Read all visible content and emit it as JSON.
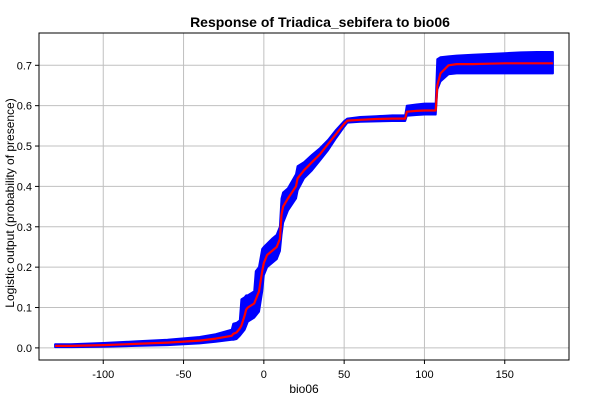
{
  "chart_data": {
    "type": "line",
    "title": "Response of Triadica_sebifera to bio06",
    "xlabel": "bio06",
    "ylabel": "Logistic output (probability of presence)",
    "xlim": [
      -140,
      190
    ],
    "ylim": [
      -0.03,
      0.78
    ],
    "xticks": [
      -100,
      -50,
      0,
      50,
      100,
      150
    ],
    "yticks": [
      0.0,
      0.1,
      0.2,
      0.3,
      0.4,
      0.5,
      0.6,
      0.7
    ],
    "xtick_labels": [
      "-100",
      "-50",
      "0",
      "50",
      "100",
      "150"
    ],
    "ytick_labels": [
      "0.0",
      "0.1",
      "0.2",
      "0.3",
      "0.4",
      "0.5",
      "0.6",
      "0.7"
    ],
    "grid": true,
    "colors": {
      "mean_line": "#ff0000",
      "band": "#0000ff"
    },
    "series": [
      {
        "role": "mean",
        "x": [
          -130,
          -120,
          -100,
          -80,
          -60,
          -40,
          -30,
          -20,
          -19,
          -17,
          -15,
          -14,
          -12,
          -11,
          -10,
          -8,
          -6,
          -5,
          -3,
          -1,
          0,
          2,
          5,
          8,
          10,
          11,
          12,
          15,
          20,
          21,
          25,
          30,
          35,
          40,
          45,
          50,
          52,
          60,
          70,
          80,
          88,
          89,
          95,
          100,
          105,
          107,
          108,
          110,
          115,
          120,
          130,
          140,
          150,
          160,
          170,
          180
        ],
        "y": [
          0.005,
          0.005,
          0.007,
          0.01,
          0.013,
          0.018,
          0.023,
          0.03,
          0.035,
          0.038,
          0.048,
          0.055,
          0.08,
          0.095,
          0.1,
          0.105,
          0.11,
          0.12,
          0.14,
          0.19,
          0.21,
          0.23,
          0.24,
          0.25,
          0.27,
          0.33,
          0.35,
          0.37,
          0.4,
          0.42,
          0.44,
          0.46,
          0.48,
          0.505,
          0.53,
          0.555,
          0.563,
          0.565,
          0.567,
          0.568,
          0.568,
          0.585,
          0.587,
          0.588,
          0.588,
          0.588,
          0.65,
          0.68,
          0.7,
          0.703,
          0.703,
          0.704,
          0.705,
          0.705,
          0.705,
          0.705
        ]
      },
      {
        "role": "upper",
        "x": [
          -130,
          -120,
          -100,
          -80,
          -60,
          -40,
          -30,
          -20,
          -19,
          -17,
          -15,
          -14,
          -12,
          -11,
          -10,
          -8,
          -6,
          -5,
          -3,
          -1,
          0,
          2,
          5,
          8,
          10,
          11,
          12,
          15,
          20,
          21,
          25,
          30,
          35,
          40,
          45,
          50,
          52,
          60,
          70,
          80,
          88,
          89,
          95,
          100,
          105,
          107,
          108,
          110,
          115,
          120,
          130,
          140,
          150,
          160,
          170,
          180
        ],
        "y": [
          0.009,
          0.009,
          0.012,
          0.016,
          0.02,
          0.027,
          0.034,
          0.045,
          0.06,
          0.062,
          0.068,
          0.12,
          0.125,
          0.13,
          0.13,
          0.135,
          0.14,
          0.19,
          0.2,
          0.245,
          0.25,
          0.258,
          0.27,
          0.28,
          0.3,
          0.37,
          0.385,
          0.395,
          0.43,
          0.45,
          0.46,
          0.478,
          0.495,
          0.515,
          0.54,
          0.562,
          0.568,
          0.572,
          0.574,
          0.576,
          0.576,
          0.6,
          0.603,
          0.605,
          0.605,
          0.605,
          0.715,
          0.72,
          0.722,
          0.724,
          0.726,
          0.728,
          0.73,
          0.732,
          0.733,
          0.733
        ]
      },
      {
        "role": "lower",
        "x": [
          -130,
          -120,
          -100,
          -80,
          -60,
          -40,
          -30,
          -20,
          -19,
          -17,
          -15,
          -14,
          -12,
          -11,
          -10,
          -8,
          -6,
          -5,
          -3,
          -1,
          0,
          2,
          5,
          8,
          10,
          11,
          12,
          15,
          20,
          21,
          25,
          30,
          35,
          40,
          45,
          50,
          52,
          60,
          70,
          80,
          88,
          89,
          95,
          100,
          105,
          107,
          108,
          110,
          115,
          120,
          130,
          140,
          150,
          160,
          170,
          180
        ],
        "y": [
          0.002,
          0.002,
          0.003,
          0.005,
          0.007,
          0.011,
          0.015,
          0.02,
          0.02,
          0.022,
          0.03,
          0.035,
          0.045,
          0.055,
          0.065,
          0.07,
          0.075,
          0.08,
          0.09,
          0.14,
          0.18,
          0.2,
          0.21,
          0.22,
          0.24,
          0.28,
          0.31,
          0.34,
          0.37,
          0.39,
          0.42,
          0.44,
          0.465,
          0.49,
          0.52,
          0.548,
          0.558,
          0.56,
          0.561,
          0.562,
          0.562,
          0.575,
          0.577,
          0.578,
          0.578,
          0.578,
          0.64,
          0.66,
          0.678,
          0.68,
          0.68,
          0.68,
          0.68,
          0.68,
          0.68,
          0.68
        ]
      }
    ]
  }
}
